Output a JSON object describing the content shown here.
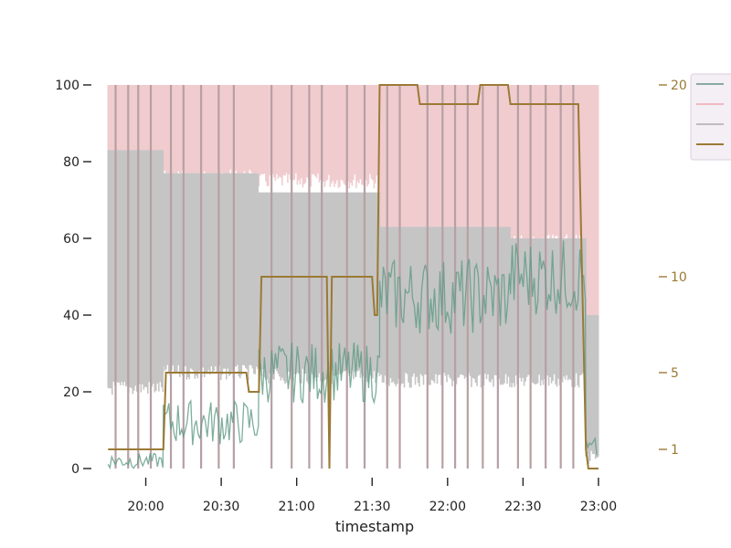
{
  "chart_data": {
    "type": "line",
    "xlabel": "timestamp",
    "x_ticks": [
      "20:00",
      "20:30",
      "21:00",
      "21:30",
      "22:00",
      "22:30",
      "23:00"
    ],
    "x_tick_minutes": [
      1200,
      1230,
      1260,
      1290,
      1320,
      1350,
      1380
    ],
    "xlim": [
      "19:42",
      "23:20"
    ],
    "left_axis": {
      "ylim": [
        0,
        100
      ],
      "ticks": [
        0,
        20,
        40,
        60,
        80,
        100
      ]
    },
    "right_axis": {
      "ticks": [
        1,
        5,
        10,
        20
      ],
      "color": "#9b7a35"
    },
    "legend": {
      "placement": "top-right",
      "entries": 4
    },
    "grid": false,
    "series": [
      {
        "axis": "left",
        "style": "band",
        "color": "#f0cccf",
        "segments": [
          {
            "start": "19:45",
            "end": "20:07",
            "low": 83,
            "high": 100
          },
          {
            "start": "20:07",
            "end": "20:45",
            "low": 78,
            "high": 100
          },
          {
            "start": "20:45",
            "end": "21:33",
            "low": 77,
            "high": 100
          },
          {
            "start": "21:33",
            "end": "22:25",
            "low": 62,
            "high": 100
          },
          {
            "start": "22:25",
            "end": "22:55",
            "low": 61,
            "high": 100
          },
          {
            "start": "22:55",
            "end": "23:00",
            "low": 30,
            "high": 100
          }
        ]
      },
      {
        "axis": "left",
        "style": "band",
        "color": "#c5c5c5",
        "segments": [
          {
            "start": "19:45",
            "end": "20:07",
            "low": 23,
            "high": 83
          },
          {
            "start": "20:07",
            "end": "20:45",
            "low": 27,
            "high": 77
          },
          {
            "start": "20:45",
            "end": "21:33",
            "low": 26,
            "high": 72
          },
          {
            "start": "21:33",
            "end": "22:25",
            "low": 25,
            "high": 63
          },
          {
            "start": "22:25",
            "end": "22:55",
            "low": 25,
            "high": 60
          },
          {
            "start": "22:55",
            "end": "23:00",
            "low": 5,
            "high": 40
          }
        ]
      },
      {
        "axis": "left",
        "style": "noisy-line",
        "color": "#5e9a84",
        "segments": [
          {
            "start": "19:45",
            "end": "20:07",
            "mean": 2,
            "amp": 2
          },
          {
            "start": "20:07",
            "end": "20:45",
            "mean": 12,
            "amp": 6
          },
          {
            "start": "20:45",
            "end": "21:33",
            "mean": 25,
            "amp": 8
          },
          {
            "start": "21:33",
            "end": "22:25",
            "mean": 45,
            "amp": 10
          },
          {
            "start": "22:25",
            "end": "22:55",
            "mean": 50,
            "amp": 10
          },
          {
            "start": "22:55",
            "end": "23:00",
            "mean": 5,
            "amp": 3
          }
        ]
      },
      {
        "axis": "right",
        "style": "step-line",
        "color": "#9b7a35",
        "points": [
          [
            "19:45",
            1
          ],
          [
            "20:07",
            1
          ],
          [
            "20:08",
            5
          ],
          [
            "20:40",
            5
          ],
          [
            "20:41",
            4
          ],
          [
            "20:45",
            4
          ],
          [
            "20:46",
            10
          ],
          [
            "21:12",
            10
          ],
          [
            "21:13",
            0
          ],
          [
            "21:14",
            10
          ],
          [
            "21:30",
            10
          ],
          [
            "21:31",
            8
          ],
          [
            "21:32",
            8
          ],
          [
            "21:33",
            20
          ],
          [
            "21:48",
            20
          ],
          [
            "21:49",
            19
          ],
          [
            "22:12",
            19
          ],
          [
            "22:13",
            20
          ],
          [
            "22:24",
            20
          ],
          [
            "22:25",
            19
          ],
          [
            "22:52",
            19
          ],
          [
            "22:55",
            1
          ],
          [
            "22:56",
            0
          ],
          [
            "23:00",
            0
          ]
        ]
      }
    ],
    "spikes": [
      "19:48",
      "19:53",
      "19:57",
      "20:02",
      "20:10",
      "20:15",
      "20:22",
      "20:29",
      "20:35",
      "20:50",
      "20:58",
      "21:05",
      "21:10",
      "21:20",
      "21:27",
      "21:36",
      "21:41",
      "21:52",
      "21:58",
      "22:03",
      "22:08",
      "22:14",
      "22:20",
      "22:28",
      "22:33",
      "22:39",
      "22:45",
      "22:50"
    ]
  }
}
